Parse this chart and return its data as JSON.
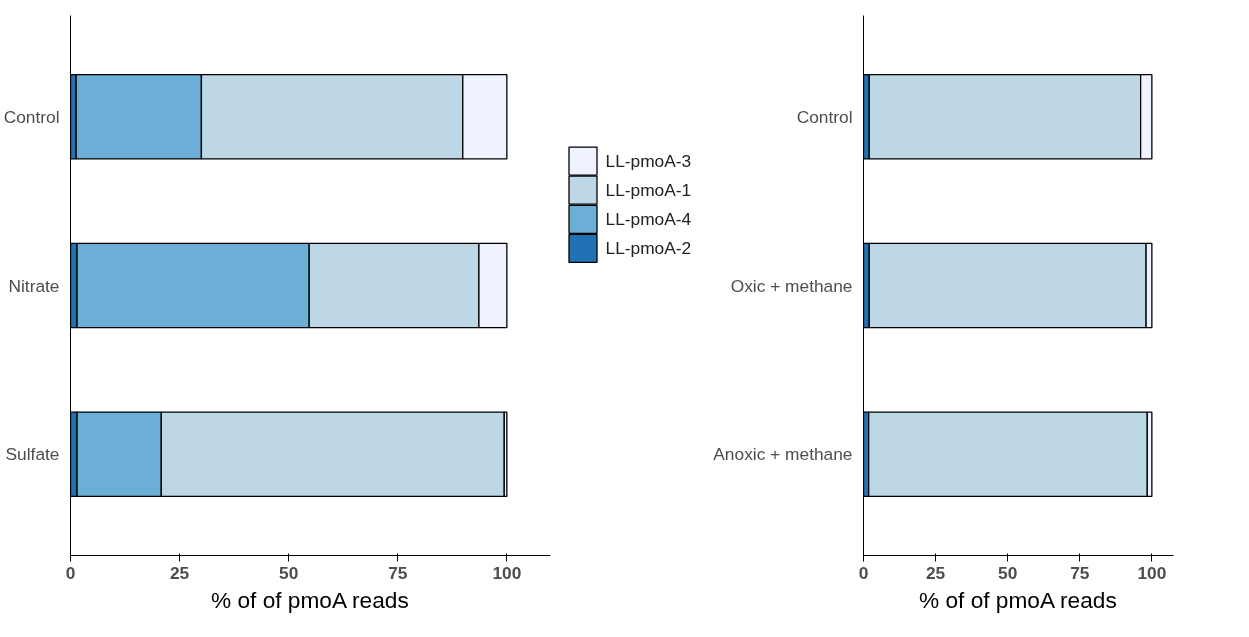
{
  "chart_data": [
    {
      "type": "bar",
      "orientation": "horizontal",
      "stacked": true,
      "categories": [
        "Control",
        "Nitrate",
        "Sulfate"
      ],
      "xlabel": "% of of pmoA reads",
      "xlim": [
        0,
        110
      ],
      "xticks": [
        0,
        25,
        50,
        75,
        100
      ],
      "grid": false,
      "legend": "right",
      "series": [
        {
          "name": "LL-pmoA-2",
          "color": "#2171b5",
          "values": [
            1.3,
            1.5,
            1.5
          ]
        },
        {
          "name": "LL-pmoA-4",
          "color": "#6baed6",
          "values": [
            28.7,
            53.2,
            19.3
          ]
        },
        {
          "name": "LL-pmoA-1",
          "color": "#bdd7e7",
          "values": [
            59.9,
            38.9,
            78.6
          ]
        },
        {
          "name": "LL-pmoA-3",
          "color": "#eff3ff",
          "values": [
            10.1,
            6.4,
            0.6
          ]
        }
      ]
    },
    {
      "type": "bar",
      "orientation": "horizontal",
      "stacked": true,
      "categories": [
        "Control",
        "Oxic + methane",
        "Anoxic + methane"
      ],
      "xlabel": "% of of pmoA reads",
      "xlim": [
        0,
        107.5
      ],
      "xticks": [
        0,
        25,
        50,
        75,
        100
      ],
      "grid": false,
      "legend": false,
      "series": [
        {
          "color": "#2171b5",
          "values": [
            2.0,
            2.0,
            1.8
          ]
        },
        {
          "color": "#bdd7e7",
          "values": [
            94.1,
            96.0,
            96.6
          ]
        },
        {
          "color": "#eff3ff",
          "values": [
            3.9,
            2.0,
            1.6
          ]
        }
      ]
    }
  ]
}
